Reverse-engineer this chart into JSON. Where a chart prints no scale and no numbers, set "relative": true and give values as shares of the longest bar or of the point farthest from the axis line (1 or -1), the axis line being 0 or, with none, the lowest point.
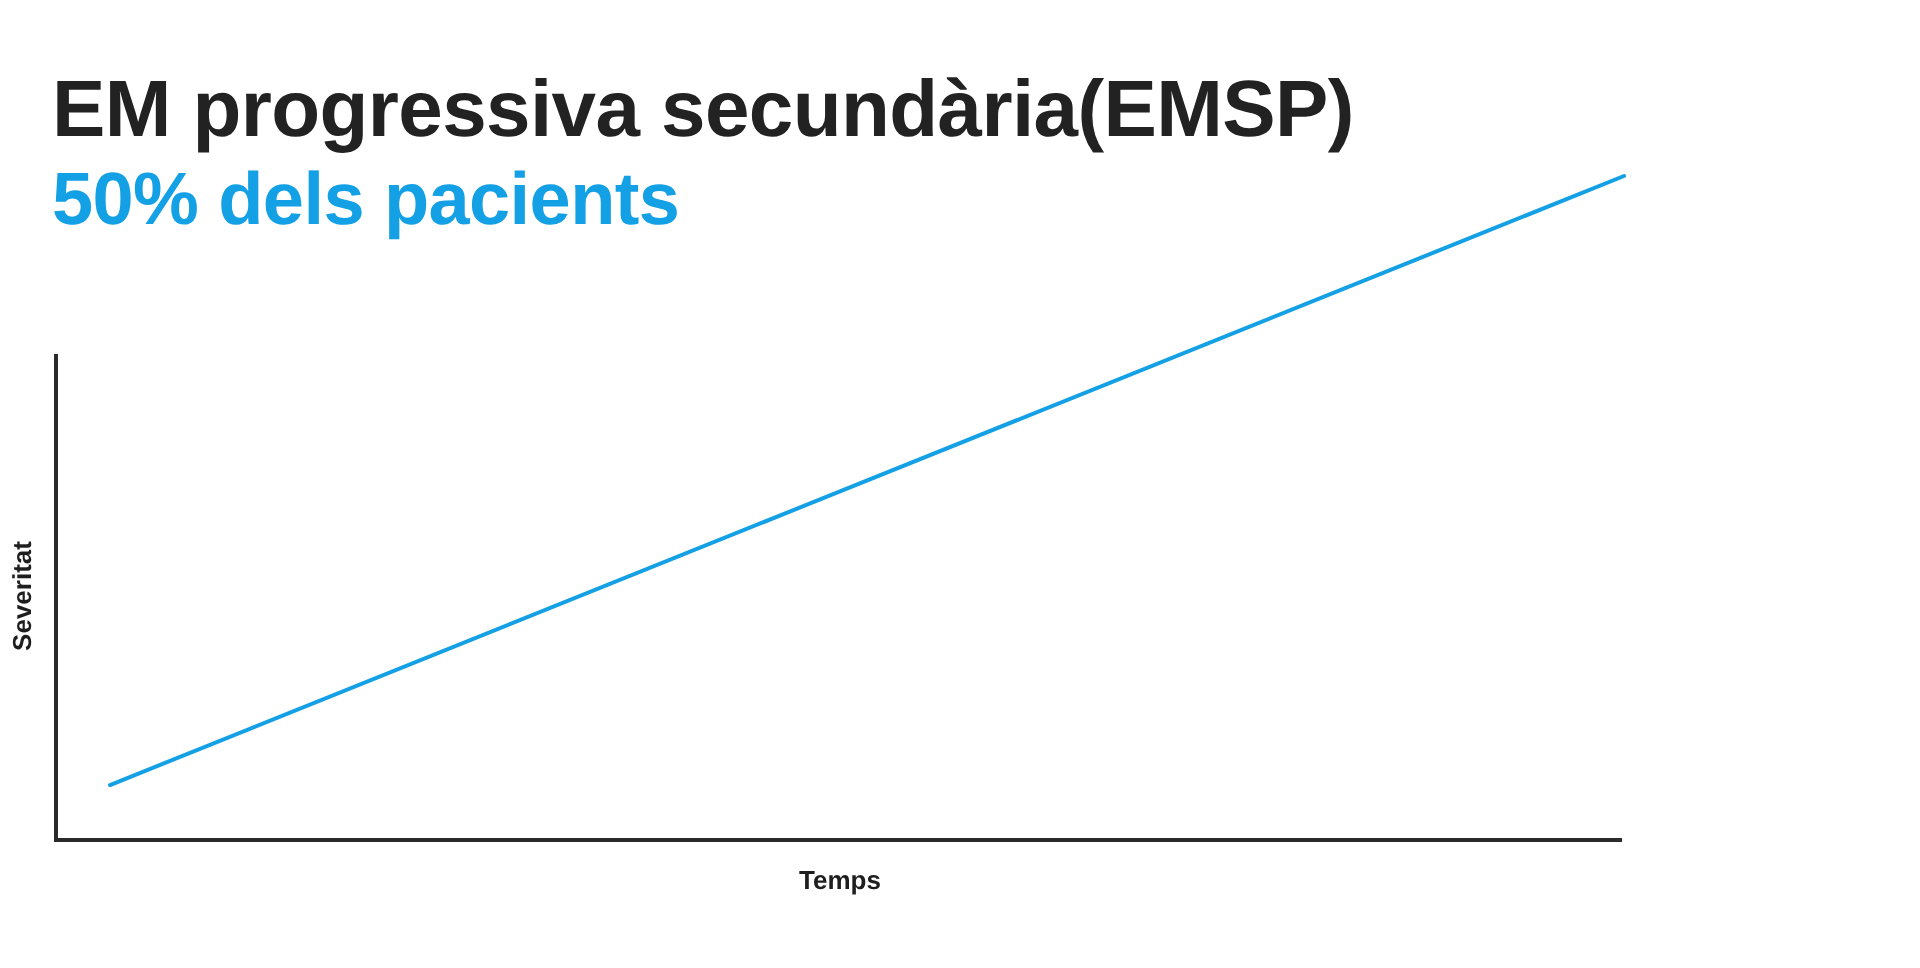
{
  "chart_data": {
    "type": "line",
    "title": "EM progressiva secundària(EMSP)",
    "subtitle": "50% dels pacients",
    "xlabel": "Temps",
    "ylabel": "Severitat",
    "relative": true,
    "tick_labels": false,
    "categories": [
      null,
      null
    ],
    "series": [
      {
        "color": "#14a0e4",
        "values": [
          0.08,
          1
        ]
      }
    ]
  }
}
